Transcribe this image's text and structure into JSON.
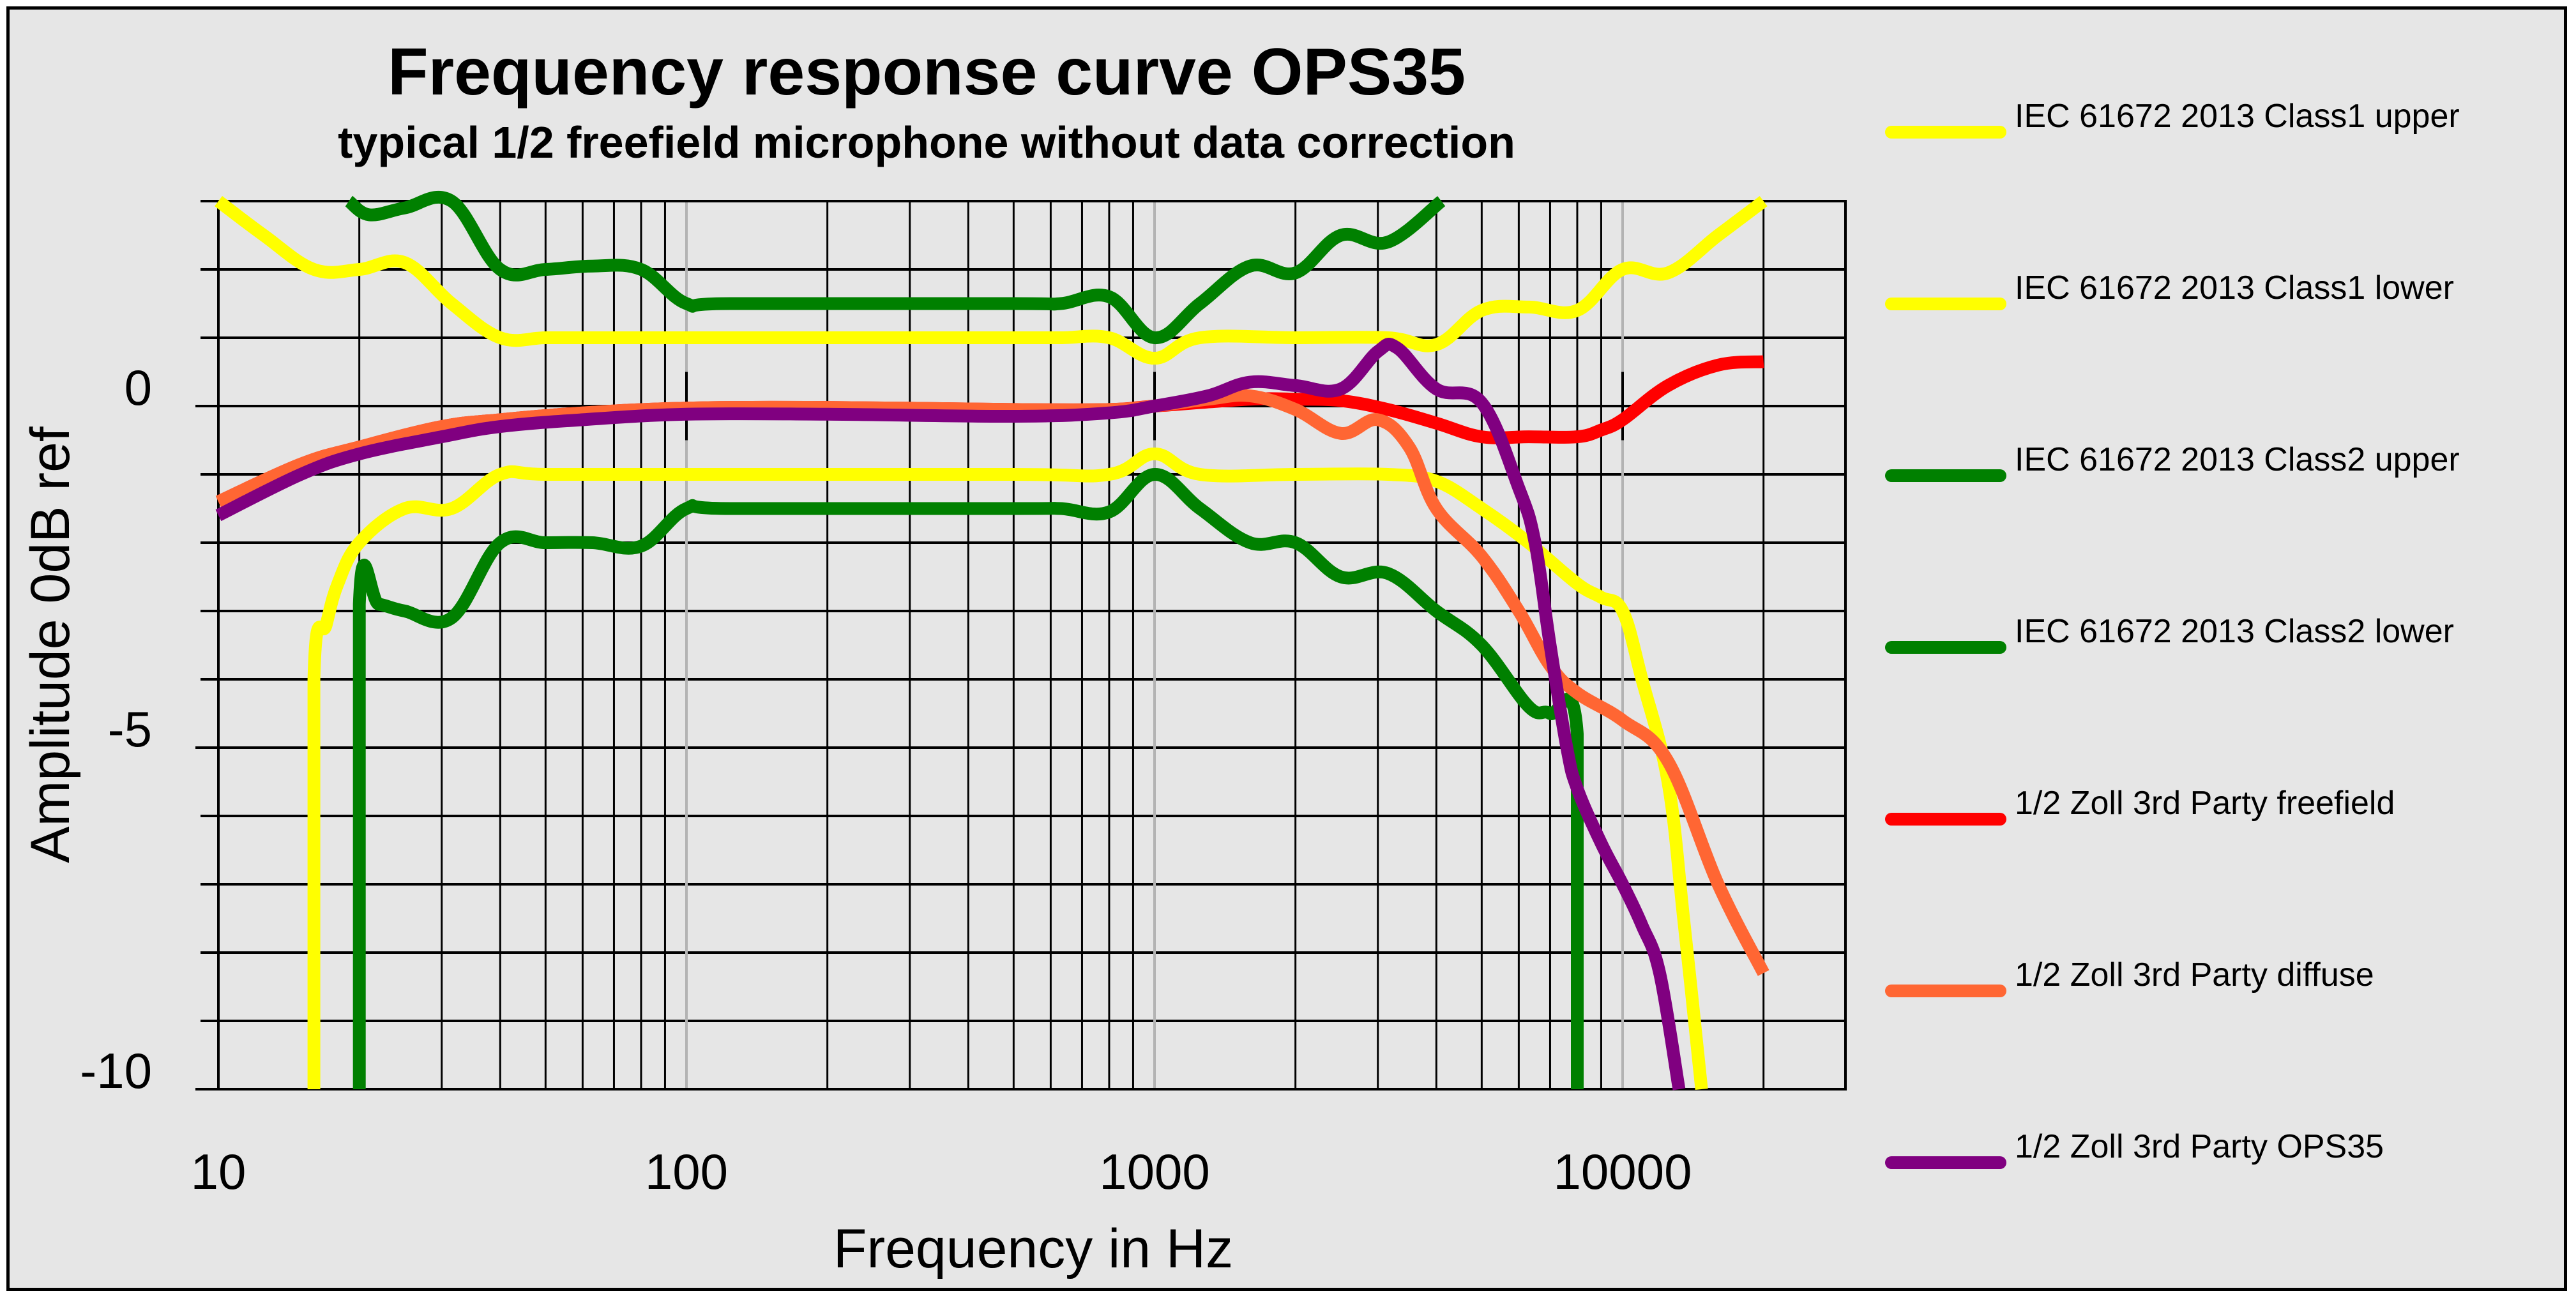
{
  "chart_data": {
    "type": "line",
    "title": "Frequency response curve OPS35",
    "subtitle": "typical 1/2 freefield microphone without  data correction",
    "xlabel": "Frequency in Hz",
    "ylabel": "Amplitude 0dB ref",
    "x_scale": "log",
    "xlim": [
      10,
      56000
    ],
    "ylim": [
      -10,
      3
    ],
    "x_ticks": [
      {
        "value": 10,
        "label": "10"
      },
      {
        "value": 100,
        "label": "100"
      },
      {
        "value": 1000,
        "label": "1000"
      },
      {
        "value": 10000,
        "label": "10000"
      }
    ],
    "y_ticks": [
      {
        "value": 0,
        "label": "0"
      },
      {
        "value": -5,
        "label": "-5"
      },
      {
        "value": -10,
        "label": "-10"
      }
    ],
    "grid": true,
    "legend_position": "right",
    "series": [
      {
        "name": "IEC 61672 2013 Class1 upper",
        "color": "#ffff00",
        "points": [
          [
            10,
            3.0
          ],
          [
            12.5,
            2.5
          ],
          [
            16,
            2.0
          ],
          [
            20,
            2.0
          ],
          [
            25,
            2.1
          ],
          [
            31.5,
            1.5
          ],
          [
            40,
            1.0
          ],
          [
            50,
            1.0
          ],
          [
            63,
            1.0
          ],
          [
            100,
            1.0
          ],
          [
            200,
            1.0
          ],
          [
            500,
            1.0
          ],
          [
            630,
            1.0
          ],
          [
            800,
            1.0
          ],
          [
            1000,
            0.7
          ],
          [
            1250,
            1.0
          ],
          [
            2000,
            1.0
          ],
          [
            3150,
            1.0
          ],
          [
            4000,
            0.9
          ],
          [
            5000,
            1.4
          ],
          [
            6300,
            1.45
          ],
          [
            8000,
            1.4
          ],
          [
            10000,
            2.0
          ],
          [
            12500,
            1.95
          ],
          [
            16000,
            2.5
          ],
          [
            20000,
            3.0
          ]
        ]
      },
      {
        "name": "IEC 61672 2013 Class1 lower",
        "color": "#ffff00",
        "points": [
          [
            16,
            -10
          ],
          [
            16,
            -4
          ],
          [
            17,
            -3.2
          ],
          [
            18,
            -2.6
          ],
          [
            20,
            -2.0
          ],
          [
            25,
            -1.5
          ],
          [
            31.5,
            -1.5
          ],
          [
            40,
            -1.0
          ],
          [
            50,
            -1.0
          ],
          [
            100,
            -1.0
          ],
          [
            500,
            -1.0
          ],
          [
            800,
            -1.0
          ],
          [
            1000,
            -0.7
          ],
          [
            1250,
            -1.0
          ],
          [
            2000,
            -1.0
          ],
          [
            3150,
            -1.0
          ],
          [
            4000,
            -1.1
          ],
          [
            5000,
            -1.5
          ],
          [
            6300,
            -2.0
          ],
          [
            8000,
            -2.6
          ],
          [
            9000,
            -2.8
          ],
          [
            10000,
            -3.0
          ],
          [
            11000,
            -4.0
          ],
          [
            12500,
            -5.5
          ],
          [
            13500,
            -7.5
          ],
          [
            14750,
            -10
          ]
        ]
      },
      {
        "name": "IEC 61672 2013 Class2 upper",
        "color": "#008000",
        "points": [
          [
            19,
            3.0
          ],
          [
            21,
            2.8
          ],
          [
            25,
            2.9
          ],
          [
            31.5,
            3.0
          ],
          [
            40,
            2.0
          ],
          [
            50,
            2.0
          ],
          [
            63,
            2.05
          ],
          [
            80,
            2.0
          ],
          [
            100,
            1.5
          ],
          [
            125,
            1.5
          ],
          [
            500,
            1.5
          ],
          [
            630,
            1.5
          ],
          [
            800,
            1.6
          ],
          [
            1000,
            1.0
          ],
          [
            1250,
            1.5
          ],
          [
            1600,
            2.05
          ],
          [
            2000,
            1.95
          ],
          [
            2500,
            2.5
          ],
          [
            3150,
            2.4
          ],
          [
            4100,
            3.0
          ]
        ]
      },
      {
        "name": "IEC 61672 2013 Class2 lower",
        "color": "#008000",
        "points": [
          [
            20,
            -10
          ],
          [
            20,
            -2.9
          ],
          [
            22,
            -2.9
          ],
          [
            25,
            -3.0
          ],
          [
            31.5,
            -3.1
          ],
          [
            40,
            -2.0
          ],
          [
            50,
            -2.0
          ],
          [
            63,
            -2.0
          ],
          [
            80,
            -2.05
          ],
          [
            100,
            -1.5
          ],
          [
            125,
            -1.5
          ],
          [
            500,
            -1.5
          ],
          [
            630,
            -1.5
          ],
          [
            800,
            -1.55
          ],
          [
            1000,
            -1.0
          ],
          [
            1250,
            -1.5
          ],
          [
            1600,
            -2.0
          ],
          [
            2000,
            -2.0
          ],
          [
            2500,
            -2.5
          ],
          [
            3150,
            -2.45
          ],
          [
            4000,
            -3.0
          ],
          [
            5000,
            -3.5
          ],
          [
            6300,
            -4.4
          ],
          [
            7000,
            -4.5
          ],
          [
            8000,
            -4.8
          ],
          [
            8000,
            -10
          ]
        ]
      },
      {
        "name": "1/2 Zoll  3rd Party freefield",
        "color": "#ff0000",
        "points": [
          [
            10,
            -1.4
          ],
          [
            15,
            -0.85
          ],
          [
            20,
            -0.6
          ],
          [
            30,
            -0.3
          ],
          [
            40,
            -0.2
          ],
          [
            60,
            -0.1
          ],
          [
            100,
            -0.03
          ],
          [
            200,
            -0.02
          ],
          [
            500,
            -0.05
          ],
          [
            800,
            -0.05
          ],
          [
            1000,
            0.0
          ],
          [
            1600,
            0.1
          ],
          [
            2000,
            0.1
          ],
          [
            2500,
            0.08
          ],
          [
            3150,
            -0.05
          ],
          [
            4000,
            -0.25
          ],
          [
            5000,
            -0.45
          ],
          [
            6300,
            -0.45
          ],
          [
            8000,
            -0.45
          ],
          [
            9000,
            -0.35
          ],
          [
            10000,
            -0.2
          ],
          [
            12500,
            0.3
          ],
          [
            16000,
            0.6
          ],
          [
            20000,
            0.65
          ]
        ]
      },
      {
        "name": "1/2 Zoll  3rd Party diffuse",
        "color": "#ff6633",
        "points": [
          [
            10,
            -1.4
          ],
          [
            15,
            -0.85
          ],
          [
            20,
            -0.6
          ],
          [
            30,
            -0.3
          ],
          [
            40,
            -0.2
          ],
          [
            60,
            -0.1
          ],
          [
            100,
            -0.03
          ],
          [
            200,
            -0.02
          ],
          [
            500,
            -0.05
          ],
          [
            800,
            -0.05
          ],
          [
            1000,
            0.0
          ],
          [
            1300,
            0.1
          ],
          [
            1600,
            0.15
          ],
          [
            2000,
            -0.05
          ],
          [
            2500,
            -0.4
          ],
          [
            3000,
            -0.2
          ],
          [
            3500,
            -0.6
          ],
          [
            4000,
            -1.5
          ],
          [
            5000,
            -2.2
          ],
          [
            6000,
            -3.0
          ],
          [
            7000,
            -3.8
          ],
          [
            8000,
            -4.2
          ],
          [
            10000,
            -4.6
          ],
          [
            12500,
            -5.2
          ],
          [
            16000,
            -7.0
          ],
          [
            20000,
            -8.3
          ]
        ]
      },
      {
        "name": "1/2 Zoll  3rd Party OPS35",
        "color": "#800080",
        "points": [
          [
            10,
            -1.6
          ],
          [
            15,
            -1.0
          ],
          [
            20,
            -0.7
          ],
          [
            30,
            -0.45
          ],
          [
            40,
            -0.3
          ],
          [
            60,
            -0.2
          ],
          [
            100,
            -0.12
          ],
          [
            200,
            -0.12
          ],
          [
            500,
            -0.15
          ],
          [
            800,
            -0.1
          ],
          [
            1000,
            0.0
          ],
          [
            1300,
            0.15
          ],
          [
            1600,
            0.35
          ],
          [
            2000,
            0.3
          ],
          [
            2500,
            0.25
          ],
          [
            3000,
            0.8
          ],
          [
            3300,
            0.85
          ],
          [
            4000,
            0.25
          ],
          [
            5000,
            0.05
          ],
          [
            6000,
            -1.2
          ],
          [
            6500,
            -2.0
          ],
          [
            7000,
            -3.5
          ],
          [
            7600,
            -5.0
          ],
          [
            8000,
            -5.6
          ],
          [
            9000,
            -6.4
          ],
          [
            10000,
            -7.0
          ],
          [
            11000,
            -7.6
          ],
          [
            12000,
            -8.3
          ],
          [
            13200,
            -10
          ]
        ]
      }
    ]
  }
}
